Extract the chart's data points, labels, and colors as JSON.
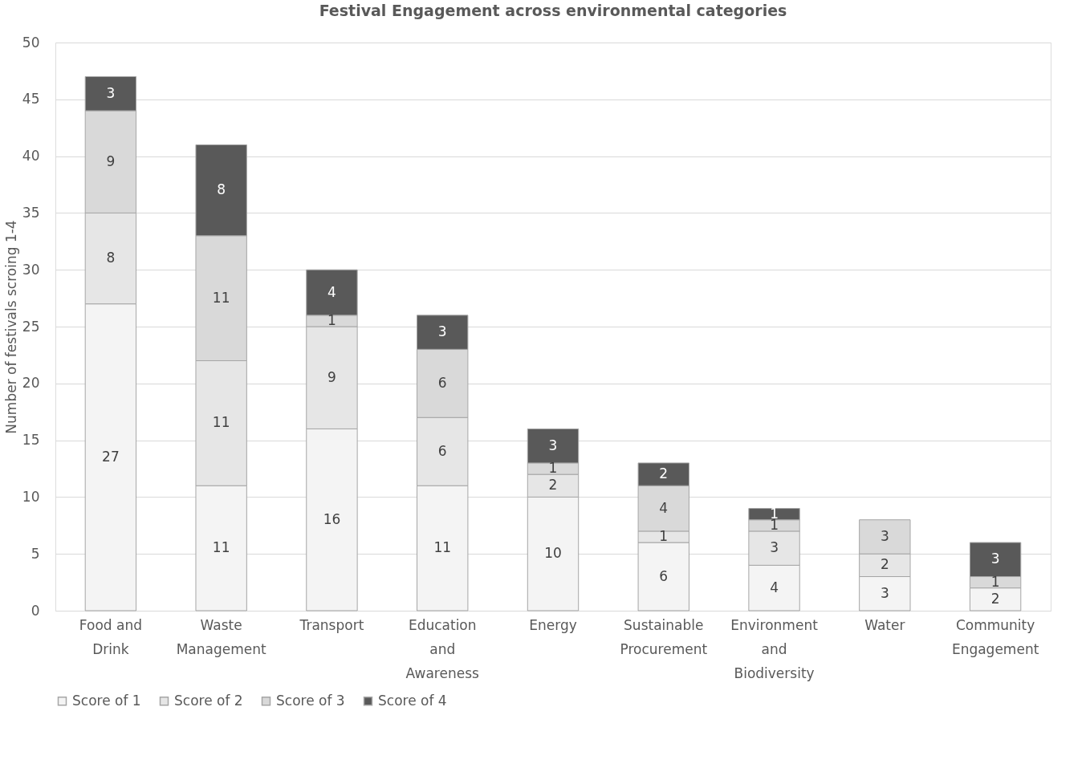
{
  "chart_data": {
    "type": "bar",
    "title": "Festival Engagement across environmental categories",
    "ylabel": "Number of festivals scroing 1-4",
    "categories": [
      "Food and Drink",
      "Waste Management",
      "Transport",
      "Education and Awareness",
      "Energy",
      "Sustainable Procurement",
      "Environment and Biodiversity",
      "Water",
      "Community Engagement"
    ],
    "series": [
      {
        "name": "Score of 1",
        "color": "#f4f4f4",
        "values": [
          27,
          11,
          16,
          11,
          10,
          6,
          4,
          3,
          2
        ]
      },
      {
        "name": "Score of 2",
        "color": "#e6e6e6",
        "values": [
          8,
          11,
          9,
          6,
          2,
          1,
          3,
          2,
          null
        ]
      },
      {
        "name": "Score of 3",
        "color": "#d9d9d9",
        "values": [
          9,
          11,
          1,
          6,
          1,
          4,
          1,
          3,
          1
        ]
      },
      {
        "name": "Score of 4",
        "color": "#595959",
        "values": [
          3,
          8,
          4,
          3,
          3,
          2,
          1,
          null,
          3
        ]
      }
    ],
    "stacked": true,
    "ylim": [
      0,
      50
    ],
    "yticks": [
      0,
      5,
      10,
      15,
      20,
      25,
      30,
      35,
      40,
      45,
      50
    ],
    "grid": "y",
    "legend": "bottom",
    "data_labels": true
  }
}
